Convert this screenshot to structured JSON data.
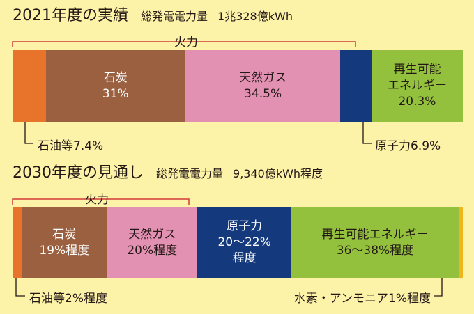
{
  "chart_data": [
    {
      "type": "bar",
      "title": "2021年度の実績",
      "subtitle": "総発電電力量",
      "total": "1兆328億kWh",
      "bracket_label": "火力",
      "segments": [
        {
          "name": "石油等",
          "value": 7.4,
          "color": "#e8732b",
          "text": "",
          "label": "石油等7.4%"
        },
        {
          "name": "石炭",
          "value": 31,
          "color": "#9a6040",
          "text": "石炭\n31%",
          "label": ""
        },
        {
          "name": "天然ガス",
          "value": 34.5,
          "color": "#e291b2",
          "text": "天然ガス\n34.5%",
          "label": ""
        },
        {
          "name": "原子力",
          "value": 6.9,
          "color": "#143a7d",
          "text": "",
          "label": "原子力6.9%"
        },
        {
          "name": "再生可能エネルギー",
          "value": 20.3,
          "color": "#93c13e",
          "text": "再生可能\nエネルギー\n20.3%",
          "label": ""
        }
      ]
    },
    {
      "type": "bar",
      "title": "2030年度の見通し",
      "subtitle": "総発電電力量",
      "total": "9,340億kWh程度",
      "bracket_label": "火力",
      "segments": [
        {
          "name": "石油等",
          "value": 2,
          "color": "#e8732b",
          "text": "",
          "label": "石油等2%程度"
        },
        {
          "name": "石炭",
          "value": 19,
          "color": "#9a6040",
          "text": "石炭\n19%程度",
          "label": ""
        },
        {
          "name": "天然ガス",
          "value": 20,
          "color": "#e291b2",
          "text": "天然ガス\n20%程度",
          "label": ""
        },
        {
          "name": "原子力",
          "value": 21,
          "color": "#143a7d",
          "text": "原子力\n20～22%\n程度",
          "label": ""
        },
        {
          "name": "再生可能エネルギー",
          "value": 37,
          "color": "#93c13e",
          "text": "再生可能エネルギー\n36～38%程度",
          "label": ""
        },
        {
          "name": "水素・アンモニア",
          "value": 1,
          "color": "#f0b51a",
          "text": "",
          "label": "水素・アンモニア1%程度"
        }
      ]
    }
  ]
}
